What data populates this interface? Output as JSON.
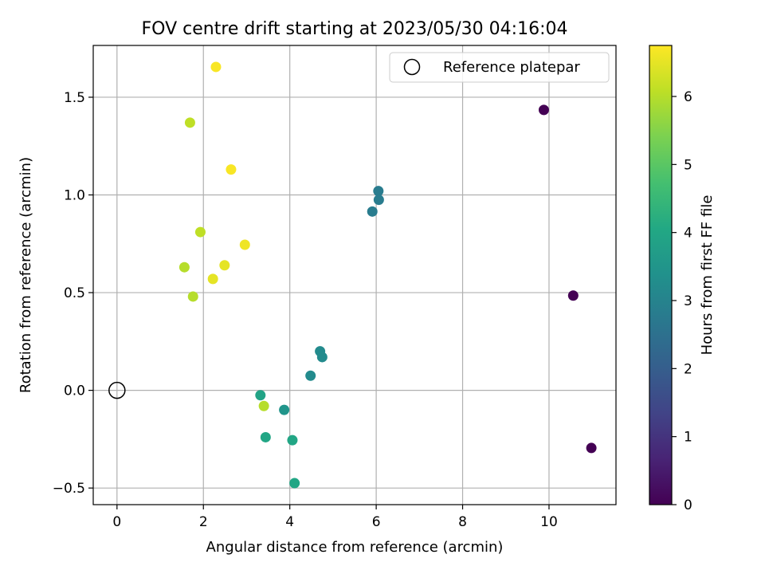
{
  "chart_data": {
    "type": "scatter",
    "title": "FOV centre drift starting at 2023/05/30 04:16:04",
    "xlabel": "Angular distance from reference (arcmin)",
    "ylabel": "Rotation from reference (arcmin)",
    "xlim": [
      -0.55,
      11.55
    ],
    "ylim": [
      -0.585,
      1.765
    ],
    "xticks": [
      0,
      2,
      4,
      6,
      8,
      10
    ],
    "xtick_labels": [
      "0",
      "2",
      "4",
      "6",
      "8",
      "10"
    ],
    "yticks": [
      -0.5,
      0.0,
      0.5,
      1.0,
      1.5
    ],
    "ytick_labels": [
      "−0.5",
      "0.0",
      "0.5",
      "1.0",
      "1.5"
    ],
    "grid": true,
    "legend": {
      "placement": "upper-right",
      "entries": [
        "Reference platepar"
      ]
    },
    "reference_point": {
      "x": 0.0,
      "y": 0.0,
      "label": "Reference platepar"
    },
    "colorbar": {
      "label": "Hours from first FF file",
      "colormap": "viridis",
      "range": [
        0,
        6.75
      ],
      "ticks": [
        0,
        1,
        2,
        3,
        4,
        5,
        6
      ],
      "tick_labels": [
        "0",
        "1",
        "2",
        "3",
        "4",
        "5",
        "6"
      ]
    },
    "points": [
      {
        "x": 9.88,
        "y": 1.435,
        "c": 0.0
      },
      {
        "x": 10.56,
        "y": 0.485,
        "c": 0.0
      },
      {
        "x": 10.98,
        "y": -0.295,
        "c": 0.0
      },
      {
        "x": 6.05,
        "y": 1.02,
        "c": 2.8
      },
      {
        "x": 6.06,
        "y": 0.975,
        "c": 2.8
      },
      {
        "x": 5.91,
        "y": 0.915,
        "c": 2.8
      },
      {
        "x": 4.7,
        "y": 0.2,
        "c": 3.2
      },
      {
        "x": 4.75,
        "y": 0.17,
        "c": 3.2
      },
      {
        "x": 4.48,
        "y": 0.075,
        "c": 3.2
      },
      {
        "x": 3.87,
        "y": -0.1,
        "c": 3.5
      },
      {
        "x": 3.32,
        "y": -0.025,
        "c": 3.9
      },
      {
        "x": 3.44,
        "y": -0.24,
        "c": 4.0
      },
      {
        "x": 4.06,
        "y": -0.255,
        "c": 4.0
      },
      {
        "x": 4.11,
        "y": -0.475,
        "c": 4.0
      },
      {
        "x": 3.4,
        "y": -0.08,
        "c": 6.0
      },
      {
        "x": 1.56,
        "y": 0.63,
        "c": 6.0
      },
      {
        "x": 1.76,
        "y": 0.48,
        "c": 6.0
      },
      {
        "x": 1.93,
        "y": 0.81,
        "c": 6.1
      },
      {
        "x": 1.69,
        "y": 1.37,
        "c": 6.1
      },
      {
        "x": 2.22,
        "y": 0.57,
        "c": 6.5
      },
      {
        "x": 2.49,
        "y": 0.64,
        "c": 6.5
      },
      {
        "x": 2.96,
        "y": 0.745,
        "c": 6.6
      },
      {
        "x": 2.64,
        "y": 1.13,
        "c": 6.7
      },
      {
        "x": 2.29,
        "y": 1.655,
        "c": 6.7
      }
    ]
  }
}
